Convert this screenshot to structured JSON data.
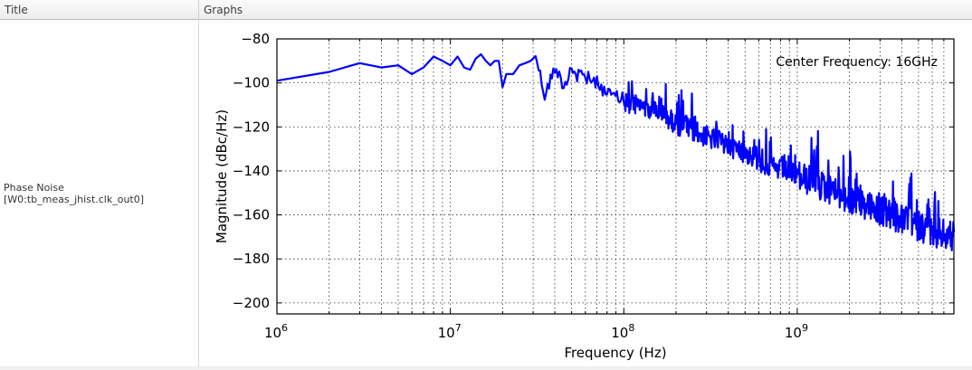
{
  "table": {
    "columns": [
      "Title",
      "Graphs"
    ],
    "rows": [
      {
        "title_line1": "Phase Noise",
        "title_line2": "[W0:tb_meas_jhist.clk_out0]"
      }
    ]
  },
  "chart_data": {
    "type": "line",
    "title": "",
    "xlabel": "Frequency (Hz)",
    "ylabel": "Magnitude (dBc/Hz)",
    "xscale": "log",
    "xlim": [
      1000000,
      8000000000
    ],
    "ylim": [
      -205,
      -80
    ],
    "x_tick_labels": [
      "10^6",
      "10^7",
      "10^8",
      "10^9"
    ],
    "y_ticks": [
      -80,
      -100,
      -120,
      -140,
      -160,
      -180,
      -200
    ],
    "grid": true,
    "annotation": "Center Frequency: 16GHz",
    "series": [
      {
        "name": "Phase Noise",
        "color": "#0000ff",
        "x": [
          1000000.0,
          2000000.0,
          3000000.0,
          4000000.0,
          5000000.0,
          6000000.0,
          7000000.0,
          8000000.0,
          9000000.0,
          10000000.0,
          11000000.0,
          12000000.0,
          13000000.0,
          14000000.0,
          15000000.0,
          16000000.0,
          17000000.0,
          18000000.0,
          19000000.0,
          20000000.0,
          21000000.0,
          23000000.0,
          25000000.0,
          27000000.0,
          29000000.0,
          31000000.0,
          35000000.0,
          40000000.0,
          45000000.0,
          50000000.0,
          60000000.0,
          70000000.0,
          80000000.0,
          100000000.0,
          150000000.0,
          200000000.0,
          300000000.0,
          500000000.0,
          700000000.0,
          1000000000.0,
          1500000000.0,
          2000000000.0,
          3000000000.0,
          4000000000.0,
          5000000000.0,
          6000000000.0,
          7000000000.0,
          8000000000.0
        ],
        "y": [
          -99,
          -95,
          -91,
          -93,
          -92,
          -96,
          -93,
          -88,
          -90,
          -92,
          -88,
          -93,
          -94,
          -89,
          -87,
          -90,
          -92,
          -90,
          -90,
          -102,
          -96,
          -96,
          -92,
          -91,
          -90,
          -86,
          -105,
          -92,
          -100,
          -95,
          -97,
          -99,
          -104,
          -107,
          -110,
          -117,
          -123,
          -130,
          -137,
          -140,
          -146,
          -151,
          -156,
          -160,
          -163,
          -165,
          -167,
          -168
        ]
      }
    ]
  }
}
